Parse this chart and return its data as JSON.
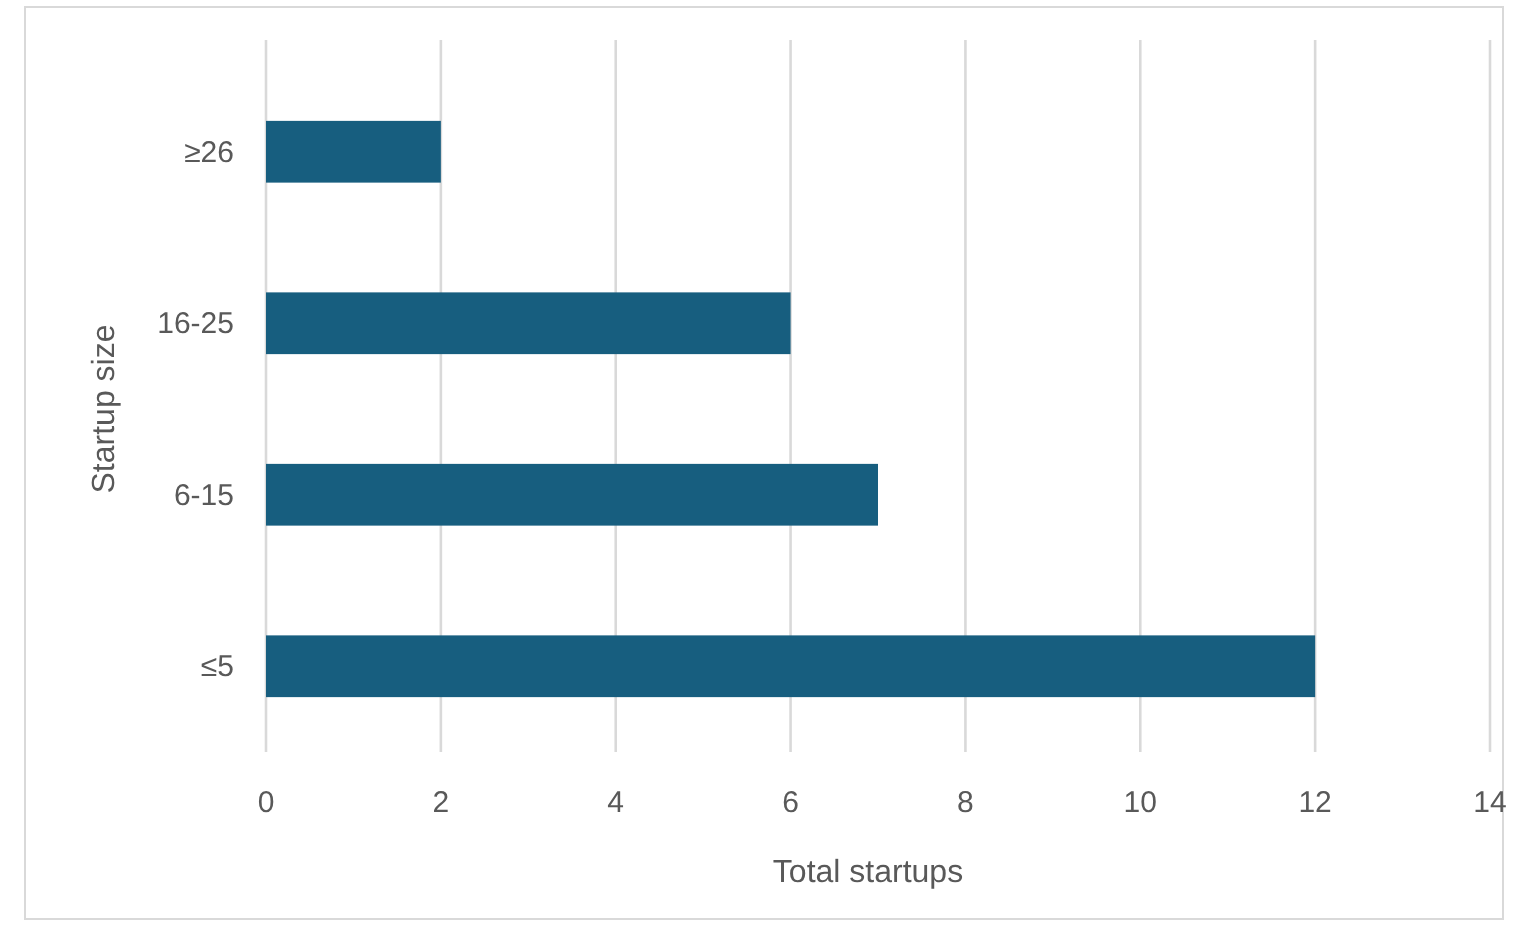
{
  "chart_data": {
    "type": "bar",
    "orientation": "horizontal",
    "xlabel": "Total startups",
    "ylabel": "Startup size",
    "categories": [
      "≥26",
      "16-25",
      "6-15",
      "≤5"
    ],
    "values": [
      2,
      6,
      7,
      12
    ],
    "color": "#175e7f",
    "xlim": [
      0,
      14
    ],
    "xticks": [
      0,
      2,
      4,
      6,
      8,
      10,
      12,
      14
    ],
    "grid": "x"
  }
}
